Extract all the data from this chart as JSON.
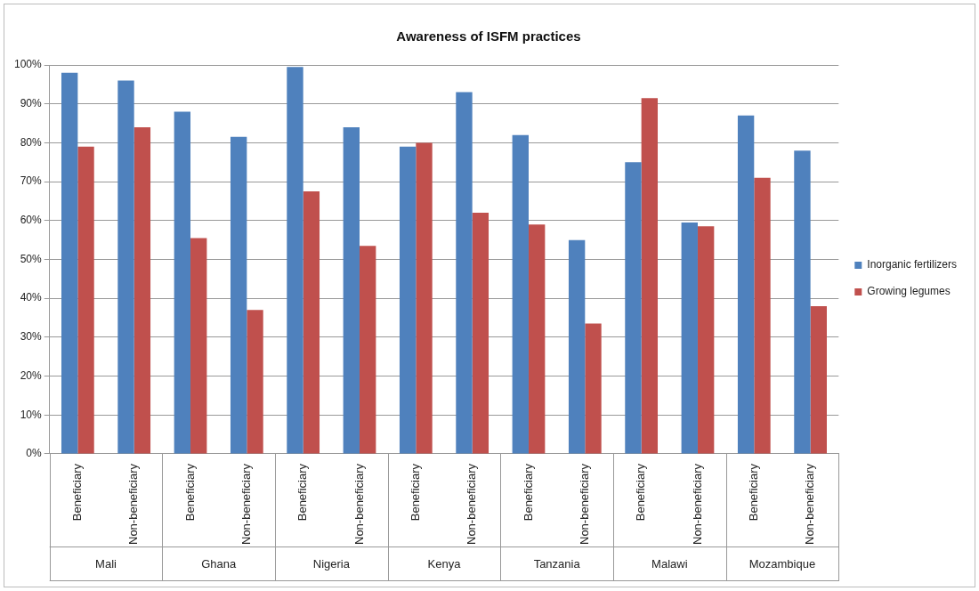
{
  "chart_data": {
    "type": "bar",
    "title": "Awareness of ISFM practices",
    "categories": [
      "Beneficiary",
      "Non-beneficiary",
      "Beneficiary",
      "Non-beneficiary",
      "Beneficiary",
      "Non-beneficiary",
      "Beneficiary",
      "Non-beneficiary",
      "Beneficiary",
      "Non-beneficiary",
      "Beneficiary",
      "Non-beneficiary",
      "Beneficiary",
      "Non-beneficiary"
    ],
    "series": [
      {
        "name": "Inorganic fertilizers",
        "color": "#4f81bd",
        "values": [
          98,
          96,
          88,
          81.5,
          99.5,
          84,
          79,
          93,
          82,
          55,
          75,
          59.5,
          87,
          78
        ]
      },
      {
        "name": "Growing legumes",
        "color": "#c0504d",
        "values": [
          79,
          84,
          55.5,
          37,
          67.5,
          53.5,
          80,
          62,
          59,
          33.5,
          91.5,
          58.5,
          71,
          38
        ]
      }
    ],
    "annotations": [
      "Mali",
      "Ghana",
      "Nigeria",
      "Kenya",
      "Tanzania",
      "Malawi",
      "Mozambique"
    ],
    "ylim": [
      0,
      100
    ],
    "yticks": [
      {
        "value": 0,
        "label": "0%"
      },
      {
        "value": 10,
        "label": "10%"
      },
      {
        "value": 20,
        "label": "20%"
      },
      {
        "value": 30,
        "label": "30%"
      },
      {
        "value": 40,
        "label": "40%"
      },
      {
        "value": 50,
        "label": "50%"
      },
      {
        "value": 60,
        "label": "60%"
      },
      {
        "value": 70,
        "label": "70%"
      },
      {
        "value": 80,
        "label": "80%"
      },
      {
        "value": 90,
        "label": "90%"
      },
      {
        "value": 100,
        "label": "100%"
      }
    ],
    "grid": "y",
    "legend": "right"
  }
}
